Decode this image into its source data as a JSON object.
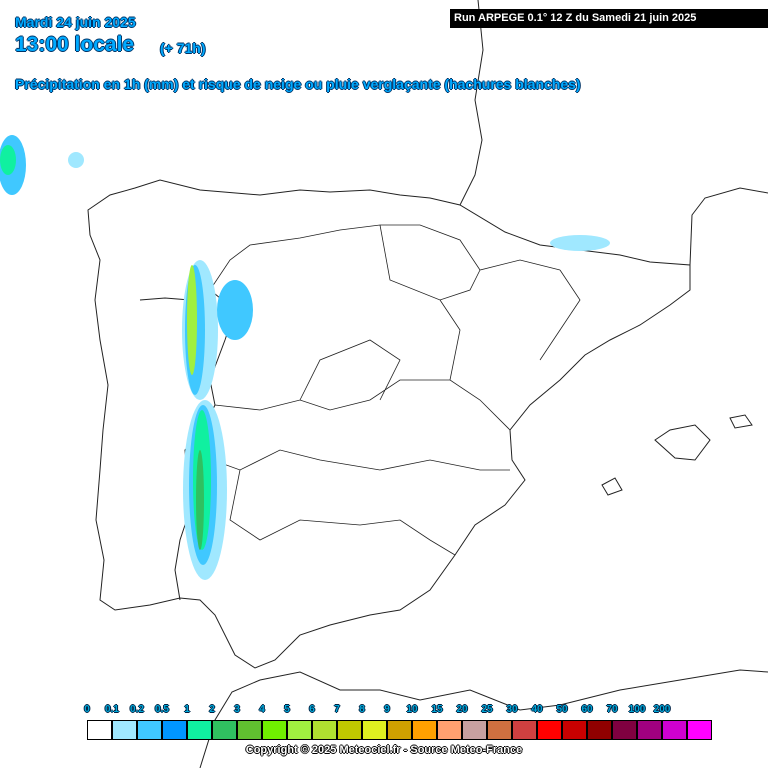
{
  "header": {
    "date": "Mardi 24 juin 2025",
    "time": "13:00 locale",
    "offset": "(+ 71h)",
    "subtitle": "Précipitation en 1h (mm) et risque de neige ou pluie verglaçante (hachures blanches)",
    "run": "Run ARPEGE 0.1° 12 Z du Samedi 21 juin 2025"
  },
  "legend": {
    "labels": [
      "0",
      "0.1",
      "0.2",
      "0.5",
      "1",
      "2",
      "3",
      "4",
      "5",
      "6",
      "7",
      "8",
      "9",
      "10",
      "15",
      "20",
      "25",
      "30",
      "40",
      "50",
      "60",
      "70",
      "100",
      "200"
    ],
    "colors": [
      "#ffffff",
      "#a0e8ff",
      "#40c8ff",
      "#0096ff",
      "#10f0a0",
      "#30c060",
      "#60c030",
      "#70f000",
      "#a0f040",
      "#b0e030",
      "#c0c800",
      "#e0f020",
      "#d0a000",
      "#ffa000",
      "#ffa070",
      "#c8a0a0",
      "#d07040",
      "#d04040",
      "#ff0000",
      "#c80000",
      "#900000",
      "#800040",
      "#a00080",
      "#d000d0",
      "#ff00ff"
    ]
  },
  "footer": {
    "copyright": "Copyright © 2025 Meteociel.fr - Source Meteo-France"
  }
}
